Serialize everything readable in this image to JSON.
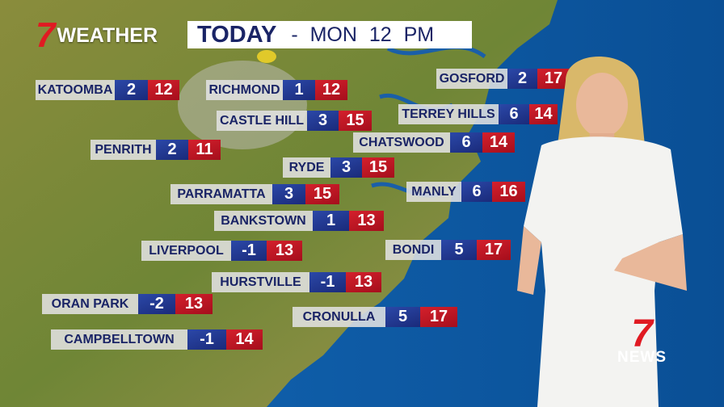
{
  "brand": {
    "logo_number": "7",
    "label": "WEATHER"
  },
  "header": {
    "title": "TODAY",
    "subtitle": "-  MON  12 PM"
  },
  "colors": {
    "min_temp": "#1f3891",
    "max_temp": "#c0121f",
    "land": "#7d8a3a",
    "ocean": "#0f5fa8"
  },
  "towns": [
    {
      "name": "KATOOMBA",
      "min": "2",
      "max": "12"
    },
    {
      "name": "RICHMOND",
      "min": "1",
      "max": "12"
    },
    {
      "name": "CASTLE HILL",
      "min": "3",
      "max": "15"
    },
    {
      "name": "PENRITH",
      "min": "2",
      "max": "11"
    },
    {
      "name": "RYDE",
      "min": "3",
      "max": "15"
    },
    {
      "name": "PARRAMATTA",
      "min": "3",
      "max": "15"
    },
    {
      "name": "BANKSTOWN",
      "min": "1",
      "max": "13"
    },
    {
      "name": "LIVERPOOL",
      "min": "-1",
      "max": "13"
    },
    {
      "name": "HURSTVILLE",
      "min": "-1",
      "max": "13"
    },
    {
      "name": "ORAN PARK",
      "min": "-2",
      "max": "13"
    },
    {
      "name": "CAMPBELLTOWN",
      "min": "-1",
      "max": "14"
    },
    {
      "name": "GOSFORD",
      "min": "2",
      "max": "17"
    },
    {
      "name": "TERREY HILLS",
      "min": "6",
      "max": "14"
    },
    {
      "name": "CHATSWOOD",
      "min": "6",
      "max": "14"
    },
    {
      "name": "MANLY",
      "min": "6",
      "max": "16"
    },
    {
      "name": "BONDI",
      "min": "5",
      "max": "17"
    },
    {
      "name": "CRONULLA",
      "min": "5",
      "max": "17"
    }
  ],
  "network_logo": {
    "number": "7",
    "label": "NEWS"
  }
}
